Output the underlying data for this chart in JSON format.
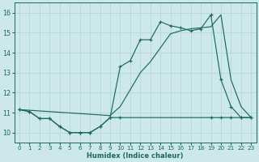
{
  "xlabel": "Humidex (Indice chaleur)",
  "bg_color": "#cce8e8",
  "line_color": "#1a6b5a",
  "grid_color": "#b5d5d0",
  "xlim": [
    -0.5,
    23.5
  ],
  "ylim": [
    9.5,
    16.5
  ],
  "xticks": [
    0,
    1,
    2,
    3,
    4,
    5,
    6,
    7,
    8,
    9,
    10,
    11,
    12,
    13,
    14,
    15,
    16,
    17,
    18,
    19,
    20,
    21,
    22,
    23
  ],
  "yticks": [
    10,
    11,
    12,
    13,
    14,
    15,
    16
  ],
  "curve_zigzag_x": [
    0,
    1,
    2,
    3,
    4,
    5,
    6,
    7,
    8,
    9,
    10,
    11,
    12,
    13,
    14,
    15,
    16,
    17,
    18,
    19,
    20,
    21,
    22,
    23
  ],
  "curve_zigzag_y": [
    11.15,
    11.05,
    10.7,
    10.7,
    10.3,
    10.0,
    10.0,
    10.0,
    10.3,
    10.75,
    13.3,
    13.6,
    14.65,
    14.65,
    15.55,
    15.35,
    15.25,
    15.1,
    15.2,
    15.9,
    12.65,
    11.3,
    10.75,
    10.75
  ],
  "curve_flat_x": [
    0,
    1,
    2,
    3,
    4,
    5,
    6,
    7,
    8,
    9,
    10,
    19,
    20,
    21,
    22,
    23
  ],
  "curve_flat_y": [
    11.15,
    11.05,
    10.7,
    10.7,
    10.3,
    10.0,
    10.0,
    10.0,
    10.3,
    10.75,
    10.75,
    10.75,
    10.75,
    10.75,
    10.75,
    10.75
  ],
  "curve_diag_x": [
    0,
    9,
    10,
    11,
    12,
    13,
    14,
    15,
    16,
    17,
    18,
    19,
    20,
    21,
    22,
    23
  ],
  "curve_diag_y": [
    11.15,
    10.85,
    11.3,
    12.15,
    13.0,
    13.55,
    14.25,
    14.95,
    15.1,
    15.2,
    15.25,
    15.3,
    15.9,
    12.65,
    11.3,
    10.75
  ]
}
